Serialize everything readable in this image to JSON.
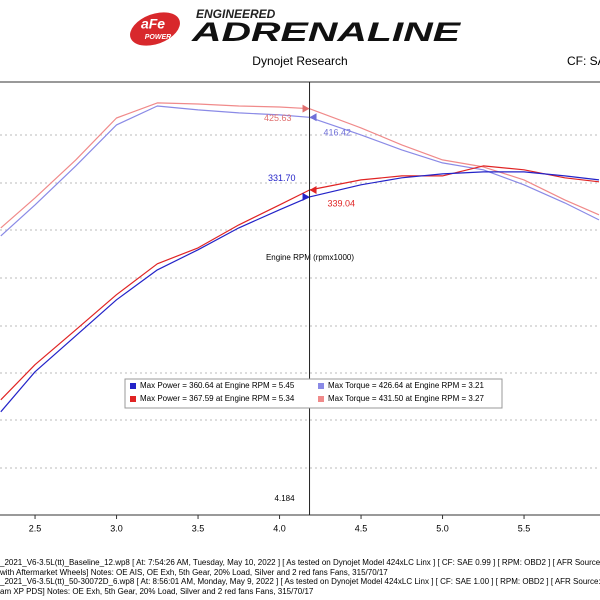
{
  "header": {
    "badge_top": "aFe",
    "badge_bottom": "POWER",
    "tagline": "ENGINEERED",
    "brand": "ADRENALINE",
    "subtitle": "Dynojet Research",
    "cf": "CF: SA"
  },
  "chart_data": {
    "type": "line",
    "x_label": "Engine RPM (rpmx1000)",
    "x": [
      2.29,
      2.5,
      2.75,
      3.0,
      3.25,
      3.5,
      3.75,
      4.0,
      4.184,
      4.5,
      4.75,
      5.0,
      5.25,
      5.5,
      5.75,
      5.96
    ],
    "xlim": [
      2.285,
      5.966
    ],
    "ylim": [
      -7,
      454
    ],
    "xticks": [
      2.5,
      {
        "value": 3,
        "label": "3.0"
      },
      3.5,
      {
        "value": 4,
        "label": "4.0"
      },
      4.5,
      {
        "value": 5,
        "label": "5.0"
      },
      5.5
    ],
    "series": [
      {
        "name": "Max Power = 360.64 at Engine RPM = 5.45",
        "color": "#2323c8",
        "values": [
          102.9,
          145.5,
          183.8,
          222.1,
          254.0,
          275.3,
          298.7,
          317.9,
          331.7,
          344.5,
          352.0,
          356.2,
          358.3,
          358.3,
          354.0,
          349.8
        ]
      },
      {
        "name": "Max Power = 367.59 at Engine RPM = 5.34",
        "color": "#e02424",
        "values": [
          115.7,
          153.0,
          190.2,
          227.5,
          260.4,
          277.4,
          301.9,
          323.2,
          339.0,
          349.8,
          354.0,
          354.0,
          364.7,
          360.5,
          352.0,
          347.7
        ]
      },
      {
        "name": "Max Torque = 426.64 at Engine RPM = 3.21",
        "color": "#8a8ae6",
        "values": [
          290.2,
          323.2,
          364.7,
          408.3,
          428.5,
          424.3,
          421.1,
          419.0,
          416.4,
          397.7,
          381.7,
          367.9,
          360.5,
          344.5,
          325.3,
          307.2
        ]
      },
      {
        "name": "Max Torque = 431.50 at Engine RPM = 3.27",
        "color": "#f08a8a",
        "values": [
          298.7,
          330.6,
          371.1,
          415.7,
          431.7,
          430.6,
          428.5,
          427.4,
          425.6,
          405.1,
          387.0,
          371.1,
          363.6,
          349.8,
          328.5,
          312.6
        ]
      }
    ],
    "cursor": {
      "value": 4.184,
      "label": "4.184"
    },
    "readouts": [
      {
        "value": 331.7,
        "label": "331.70",
        "color": "#2323c8"
      },
      {
        "value": 339.04,
        "label": "339.04",
        "color": "#e02424"
      },
      {
        "value": 416.42,
        "label": "416.42",
        "color": "#7070d8"
      },
      {
        "value": 425.63,
        "label": "425.63",
        "color": "#e07070"
      }
    ]
  },
  "footer": [
    "_2021_V6-3.5L(tt)_Baseline_12.wp8 [ At: 7:54:26 AM, Tuesday, May 10, 2022 ] [ As tested on Dynojet Model 424xLC Linx ] [ CF: SAE 0.99 ] [ RPM: OBD2 ] [ AFR Source: Dynoware",
    "with Aftermarket Wheels]  Notes: OE AIS, OE Exh, 5th Gear, 20% Load, Silver and 2 red fans Fans, 315/70/17",
    "_2021_V6-3.5L(tt)_50-30072D_6.wp8 [ At: 8:56:01 AM, Monday, May 9, 2022 ] [ As tested on Dynojet Model 424xLC Linx ] [ CF: SAE 1.00 ] [ RPM: OBD2 ] [ AFR Source: Dynoware",
    "am XP PDS]  Notes: OE Exh, 5th Gear, 20% Load, Silver and 2 red fans Fans, 315/70/17"
  ]
}
